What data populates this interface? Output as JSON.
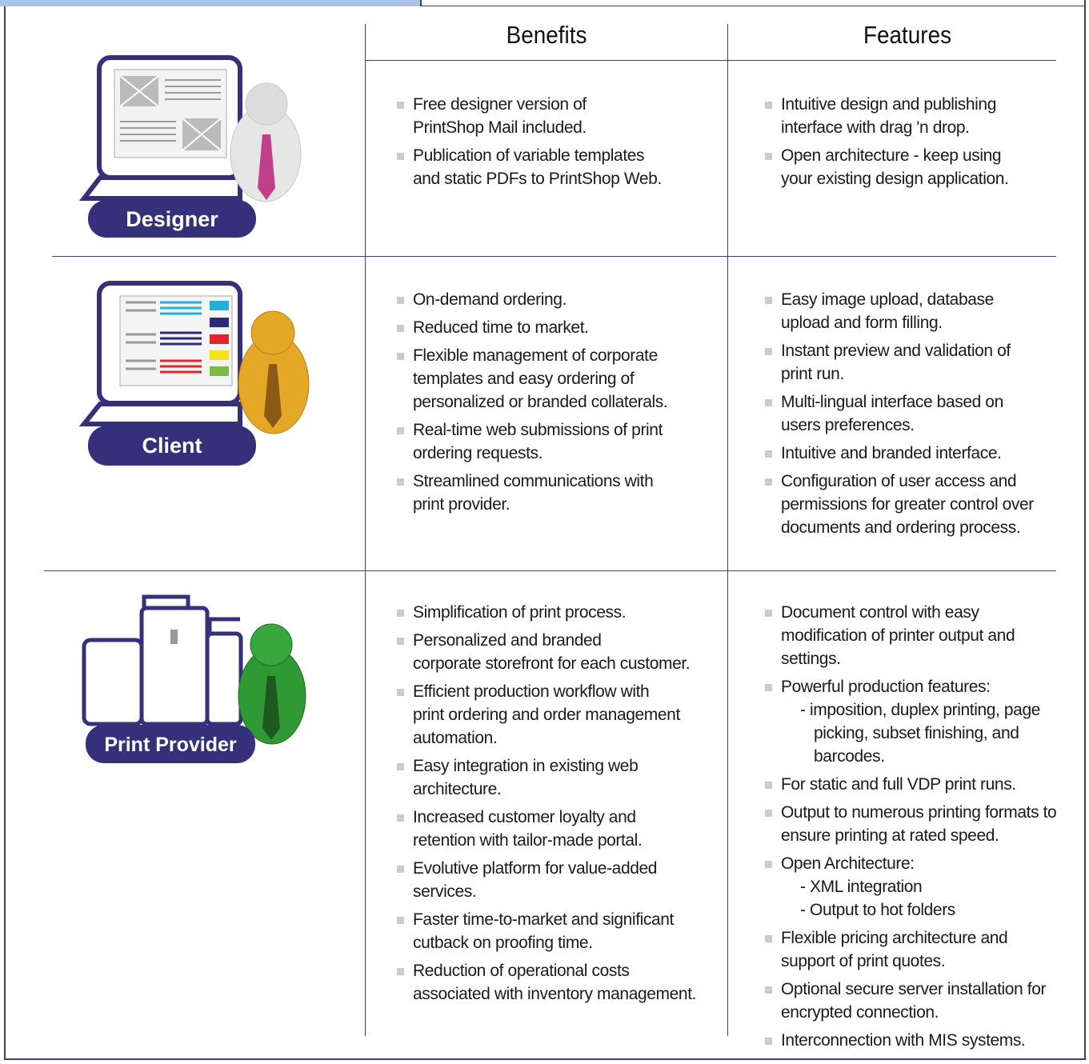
{
  "header": {
    "columns": [
      "Benefits",
      "Features"
    ]
  },
  "rows": [
    {
      "role": "Designer",
      "benefits": [
        {
          "lines": [
            "Free designer version of",
            "PrintShop Mail included."
          ]
        },
        {
          "lines": [
            "Publication of variable templates",
            "and static PDFs to PrintShop Web."
          ]
        }
      ],
      "features": [
        {
          "lines": [
            "Intuitive design and publishing",
            "interface with drag 'n drop."
          ]
        },
        {
          "lines": [
            "Open architecture - keep using",
            "your existing design application."
          ]
        }
      ]
    },
    {
      "role": "Client",
      "benefits": [
        {
          "lines": [
            "On-demand ordering."
          ]
        },
        {
          "lines": [
            "Reduced time to market."
          ]
        },
        {
          "lines": [
            "Flexible management of corporate",
            "templates and easy ordering of",
            "personalized or branded collaterals."
          ]
        },
        {
          "lines": [
            "Real-time web submissions of print",
            "ordering requests."
          ]
        },
        {
          "lines": [
            "Streamlined communications with",
            "print provider."
          ]
        }
      ],
      "features": [
        {
          "lines": [
            "Easy image upload, database",
            "upload and form filling."
          ]
        },
        {
          "lines": [
            "Instant preview and validation of",
            "print run."
          ]
        },
        {
          "lines": [
            "Multi-lingual interface based on",
            "users preferences."
          ]
        },
        {
          "lines": [
            "Intuitive and branded interface."
          ]
        },
        {
          "lines": [
            "Configuration of user access and",
            "permissions for greater control over",
            "documents and ordering process."
          ]
        }
      ]
    },
    {
      "role": "Print Provider",
      "benefits": [
        {
          "lines": [
            "Simplification of print process."
          ]
        },
        {
          "lines": [
            "Personalized and branded",
            "corporate storefront for each customer."
          ]
        },
        {
          "lines": [
            "Efficient production workflow with",
            "print ordering and order management",
            "automation."
          ]
        },
        {
          "lines": [
            "Easy integration in existing web",
            "architecture."
          ]
        },
        {
          "lines": [
            "Increased customer loyalty and",
            "retention with tailor-made portal."
          ]
        },
        {
          "lines": [
            "Evolutive platform for value-added",
            "services."
          ]
        },
        {
          "lines": [
            "Faster time-to-market and significant",
            "cutback on proofing time."
          ]
        },
        {
          "lines": [
            "Reduction of operational costs",
            "associated with inventory management."
          ]
        }
      ],
      "features": [
        {
          "lines": [
            "Document control with easy",
            "modification of printer output and",
            "settings."
          ]
        },
        {
          "lines": [
            "Powerful production features:"
          ],
          "sub": [
            [
              "- imposition, duplex printing, page",
              "picking, subset finishing, and",
              "barcodes."
            ]
          ]
        },
        {
          "lines": [
            "For static and full VDP print runs."
          ]
        },
        {
          "lines": [
            "Output to numerous printing formats to",
            "ensure printing at rated speed."
          ]
        },
        {
          "lines": [
            "Open Architecture:"
          ],
          "sub": [
            [
              "- XML integration"
            ],
            [
              "- Output to hot folders"
            ]
          ]
        },
        {
          "lines": [
            "Flexible pricing architecture and",
            "support of print quotes."
          ]
        },
        {
          "lines": [
            "Optional secure server installation for",
            "encrypted connection."
          ]
        },
        {
          "lines": [
            "Interconnection with MIS systems."
          ]
        }
      ]
    }
  ]
}
